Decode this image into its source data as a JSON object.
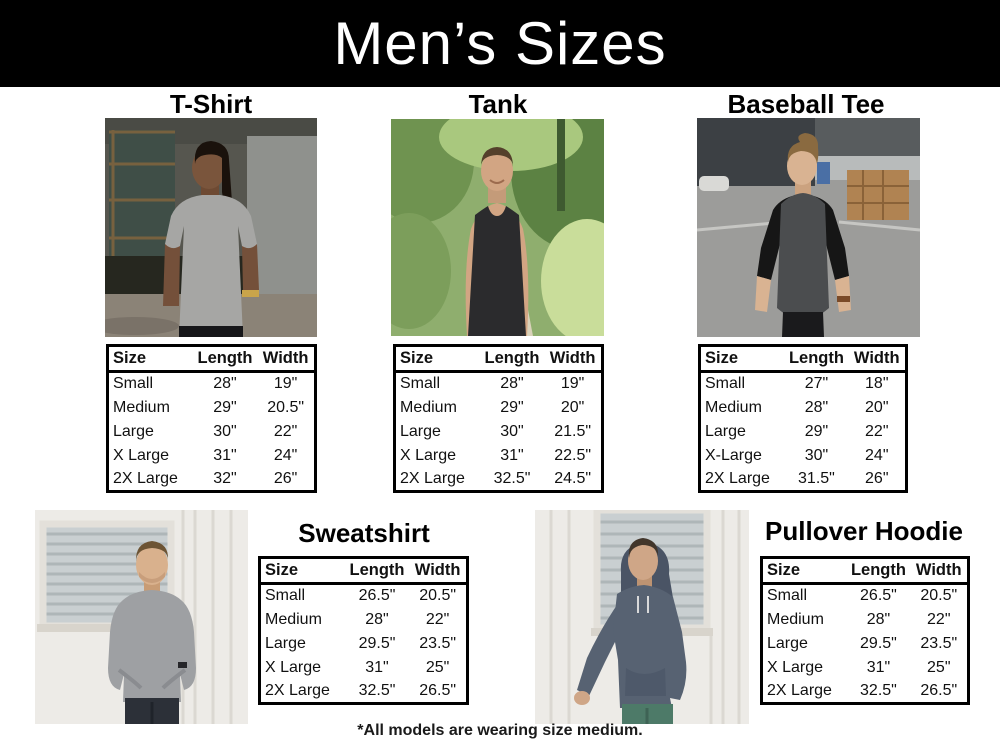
{
  "page": {
    "title": "Men’s Sizes",
    "footnote": "*All models are wearing size medium."
  },
  "colors": {
    "banner_bg": "#000000",
    "banner_text": "#ffffff",
    "table_border": "#000000"
  },
  "table_headers": [
    "Size",
    "Length",
    "Width"
  ],
  "products": [
    {
      "name": "T-Shirt",
      "photo_alt": "Model wearing a heather gray t-shirt in front of an industrial wall",
      "rows": [
        [
          "Small",
          "28\"",
          "19\""
        ],
        [
          "Medium",
          "29\"",
          "20.5\""
        ],
        [
          "Large",
          "30\"",
          "22\""
        ],
        [
          "X Large",
          "31\"",
          "24\""
        ],
        [
          "2X Large",
          "32\"",
          "26\""
        ]
      ]
    },
    {
      "name": "Tank",
      "photo_alt": "Model wearing a black tank top on a tree-lined path",
      "rows": [
        [
          "Small",
          "28\"",
          "19\""
        ],
        [
          "Medium",
          "29\"",
          "20\""
        ],
        [
          "Large",
          "30\"",
          "21.5\""
        ],
        [
          "X Large",
          "31\"",
          "22.5\""
        ],
        [
          "2X Large",
          "32.5\"",
          "24.5\""
        ]
      ]
    },
    {
      "name": "Baseball Tee",
      "photo_alt": "Model wearing a charcoal baseball tee with black raglan sleeves in a parking lot",
      "rows": [
        [
          "Small",
          "27\"",
          "18\""
        ],
        [
          "Medium",
          "28\"",
          "20\""
        ],
        [
          "Large",
          "29\"",
          "22\""
        ],
        [
          "X-Large",
          "30\"",
          "24\""
        ],
        [
          "2X Large",
          "31.5\"",
          "26\""
        ]
      ]
    },
    {
      "name": "Sweatshirt",
      "photo_alt": "Model wearing a gray crewneck sweatshirt in front of a white wall",
      "rows": [
        [
          "Small",
          "26.5\"",
          "20.5\""
        ],
        [
          "Medium",
          "28\"",
          "22\""
        ],
        [
          "Large",
          "29.5\"",
          "23.5\""
        ],
        [
          "X Large",
          "31\"",
          "25\""
        ],
        [
          "2X Large",
          "32.5\"",
          "26.5\""
        ]
      ]
    },
    {
      "name": "Pullover Hoodie",
      "photo_alt": "Model wearing a slate blue pullover hoodie in front of a white wall",
      "rows": [
        [
          "Small",
          "26.5\"",
          "20.5\""
        ],
        [
          "Medium",
          "28\"",
          "22\""
        ],
        [
          "Large",
          "29.5\"",
          "23.5\""
        ],
        [
          "X Large",
          "31\"",
          "25\""
        ],
        [
          "2X Large",
          "32.5\"",
          "26.5\""
        ]
      ]
    }
  ]
}
